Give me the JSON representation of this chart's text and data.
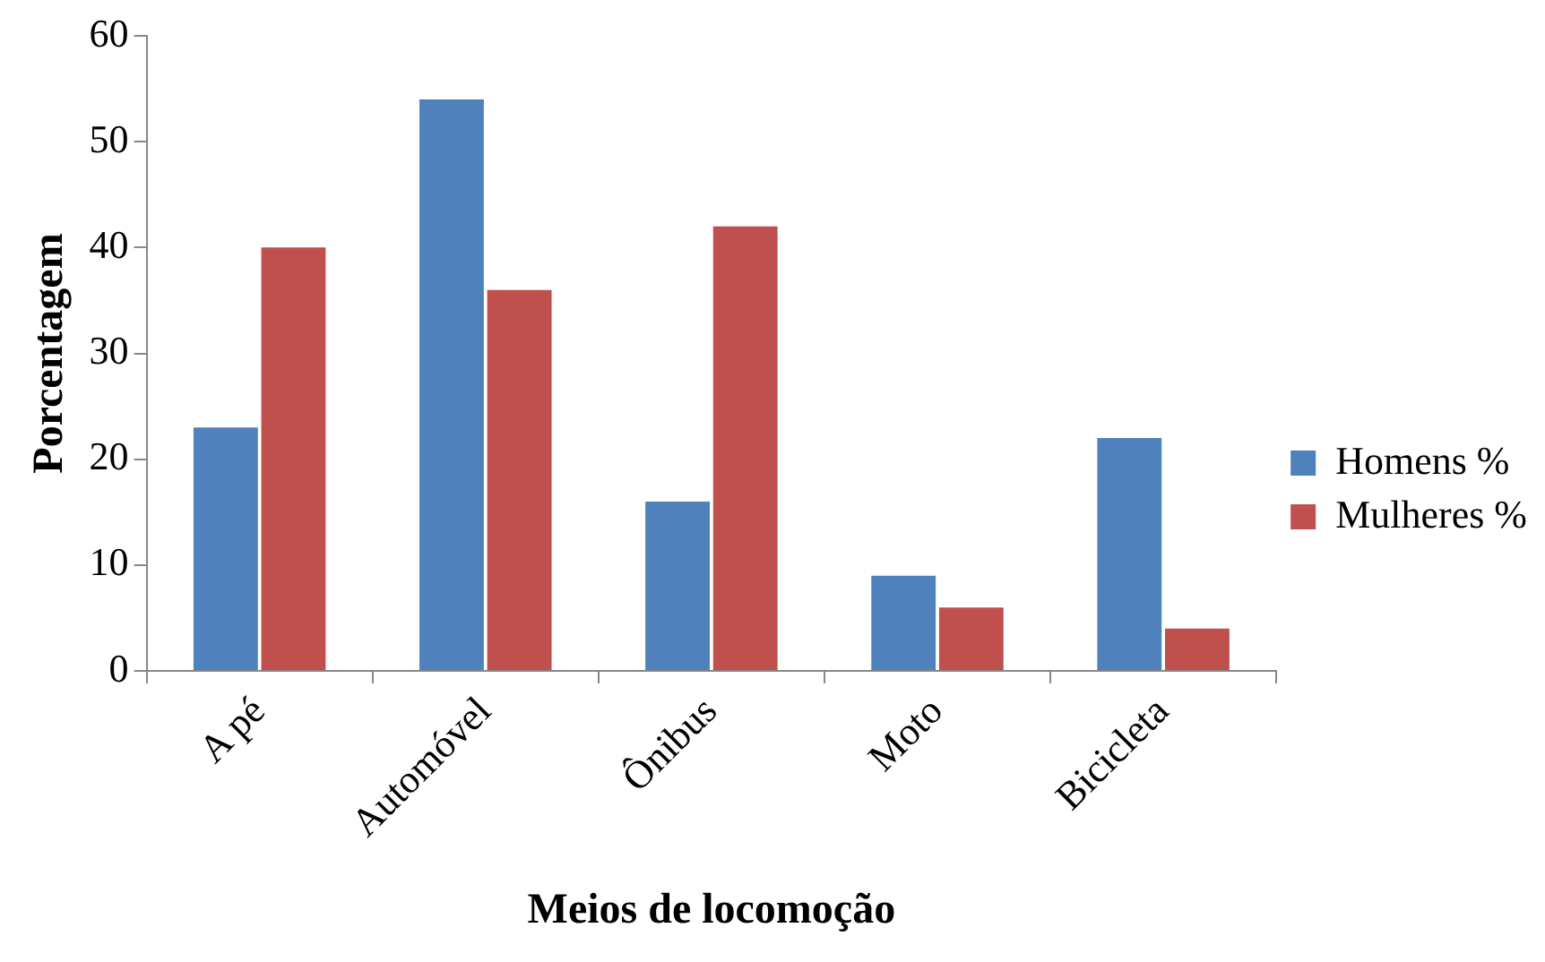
{
  "chart_data": {
    "type": "bar",
    "xlabel": "Meios de locomoção",
    "ylabel": "Porcentagem",
    "categories": [
      "A pé",
      "Automóvel",
      "Ônibus",
      "Moto",
      "Bicicleta"
    ],
    "series": [
      {
        "name": "Homens %",
        "color": "#4f81bd",
        "values": [
          23,
          54,
          16,
          9,
          22
        ]
      },
      {
        "name": "Mulheres %",
        "color": "#c0504d",
        "values": [
          40,
          36,
          42,
          6,
          4
        ]
      }
    ],
    "ylim": [
      0,
      60
    ],
    "yticks": [
      0,
      10,
      20,
      30,
      40,
      50,
      60
    ],
    "grid": false,
    "legend": "right"
  }
}
